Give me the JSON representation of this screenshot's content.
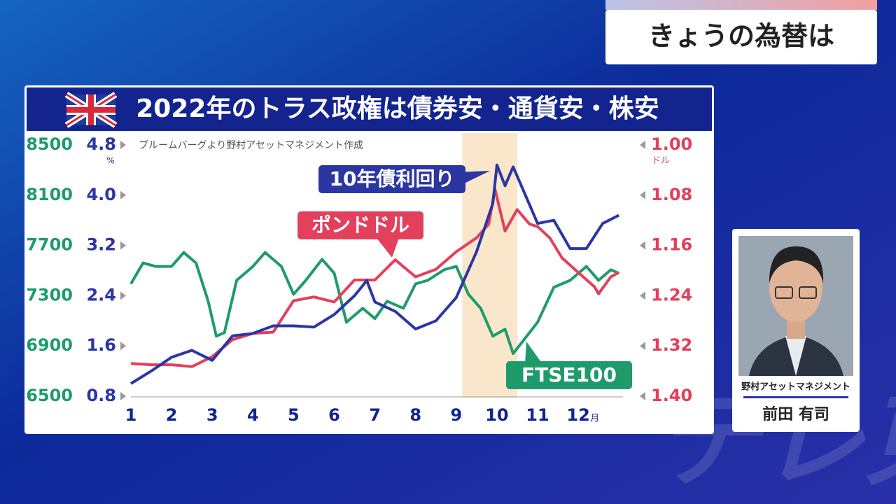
{
  "header": {
    "title": "きょうの為替は"
  },
  "chart_data": {
    "type": "line",
    "title": "2022年のトラス政権は債券安・通貨安・株安",
    "source": "ブルームバーグより野村アセットマネジメント作成",
    "xlim": [
      1,
      13.1
    ],
    "xticks": [
      1,
      2,
      3,
      4,
      5,
      6,
      7,
      8,
      9,
      10,
      11,
      12
    ],
    "x_unit": "月",
    "highlight": [
      9.15,
      10.5
    ],
    "ylim": [
      6500,
      8500
    ],
    "yticks": [
      6500,
      6900,
      7300,
      7700,
      8100,
      8500
    ],
    "y2lim": [
      0.8,
      4.8
    ],
    "y2ticks": [
      0.8,
      1.6,
      2.4,
      3.2,
      {
        "value": 4,
        "label": "4.0"
      },
      4.8
    ],
    "y2_unit": "%",
    "y3lim": [
      1.4,
      1.0
    ],
    "y3ticks": [
      {
        "value": 1,
        "label": "1.00"
      },
      1.08,
      1.16,
      1.24,
      1.32,
      {
        "value": 1.4,
        "label": "1.40"
      }
    ],
    "y3_unit": "ドル",
    "series": [
      {
        "name": "10年債利回り",
        "color": "#2b36a3",
        "axis": "y2",
        "x": [
          1,
          1.5,
          2,
          2.5,
          3,
          3.5,
          4,
          4.5,
          5,
          5.5,
          6,
          6.5,
          6.8,
          7,
          7.5,
          8,
          8.5,
          9,
          9.5,
          9.9,
          10,
          10.2,
          10.4,
          10.7,
          11,
          11.4,
          11.8,
          12.2,
          12.6,
          13
        ],
        "values": [
          1.0,
          1.2,
          1.42,
          1.53,
          1.37,
          1.76,
          1.8,
          1.92,
          1.92,
          1.9,
          2.1,
          2.4,
          2.64,
          2.3,
          2.15,
          1.87,
          2.0,
          2.37,
          3.1,
          3.87,
          4.48,
          4.15,
          4.45,
          4.0,
          3.55,
          3.6,
          3.15,
          3.15,
          3.55,
          3.68
        ]
      },
      {
        "name": "ポンドドル",
        "color": "#e2405c",
        "axis": "y3",
        "x": [
          1,
          1.5,
          2,
          2.5,
          3,
          3.5,
          4,
          4.5,
          5,
          5.5,
          6,
          6.5,
          7,
          7.5,
          8,
          8.5,
          9,
          9.5,
          9.8,
          9.95,
          10.2,
          10.5,
          10.8,
          11,
          11.3,
          11.6,
          12,
          12.4,
          12.5,
          12.8,
          13
        ],
        "values": [
          1.348,
          1.35,
          1.35,
          1.353,
          1.337,
          1.31,
          1.3,
          1.298,
          1.248,
          1.242,
          1.25,
          1.215,
          1.215,
          1.183,
          1.21,
          1.198,
          1.17,
          1.148,
          1.126,
          1.07,
          1.137,
          1.103,
          1.126,
          1.13,
          1.148,
          1.18,
          1.203,
          1.226,
          1.237,
          1.21,
          1.203
        ]
      },
      {
        "name": "FTSE100",
        "color": "#1f9b6b",
        "axis": "y",
        "x": [
          1,
          1.3,
          1.6,
          2,
          2.3,
          2.6,
          2.9,
          3.1,
          3.3,
          3.6,
          4,
          4.3,
          4.7,
          5,
          5.3,
          5.7,
          6,
          6.3,
          6.7,
          7,
          7.3,
          7.7,
          8,
          8.3,
          8.7,
          9,
          9.3,
          9.6,
          9.9,
          10.2,
          10.4,
          10.8,
          11,
          11.4,
          11.8,
          12.2,
          12.5,
          12.8,
          13
        ],
        "values": [
          7394,
          7561,
          7533,
          7533,
          7644,
          7561,
          7256,
          6978,
          7006,
          7422,
          7533,
          7644,
          7533,
          7311,
          7422,
          7589,
          7478,
          7089,
          7200,
          7117,
          7256,
          7200,
          7394,
          7422,
          7506,
          7533,
          7311,
          7200,
          6978,
          7033,
          6839,
          7006,
          7089,
          7367,
          7422,
          7533,
          7422,
          7506,
          7478
        ]
      }
    ]
  },
  "guest": {
    "company": "野村アセットマネジメント",
    "name": "前田 有司"
  },
  "watermark": "テレ東"
}
